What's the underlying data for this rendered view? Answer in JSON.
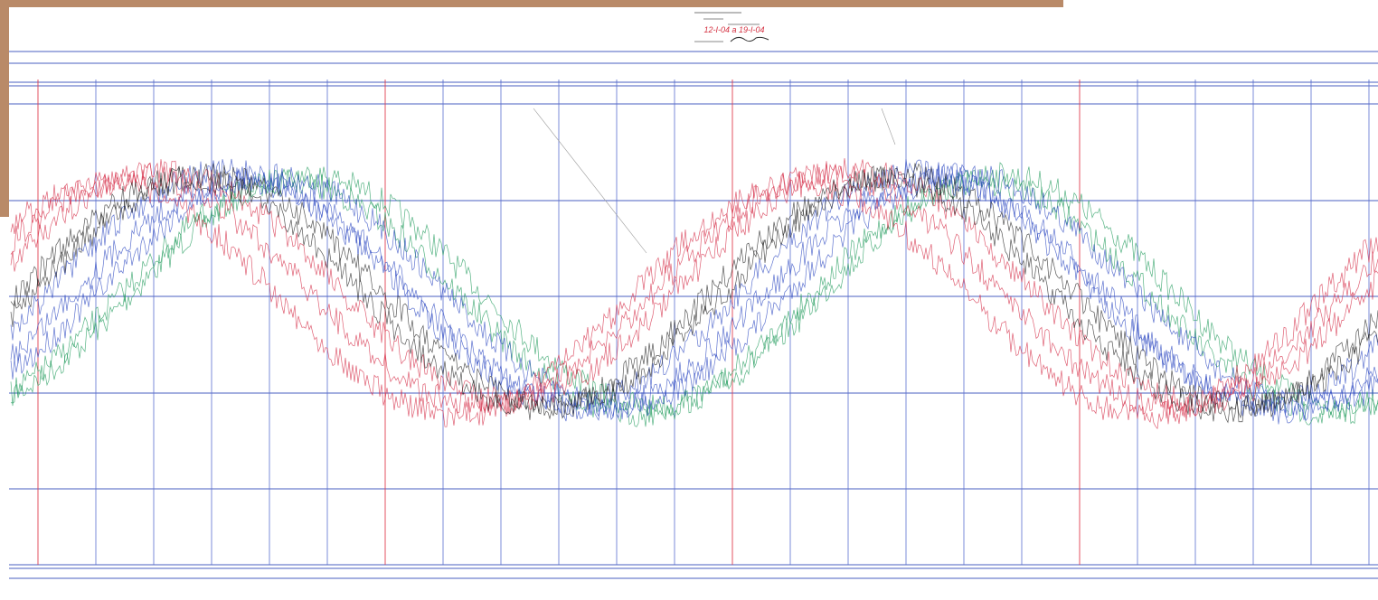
{
  "stamp": {
    "date": "12-I-04 a 19-I-04"
  }
}
